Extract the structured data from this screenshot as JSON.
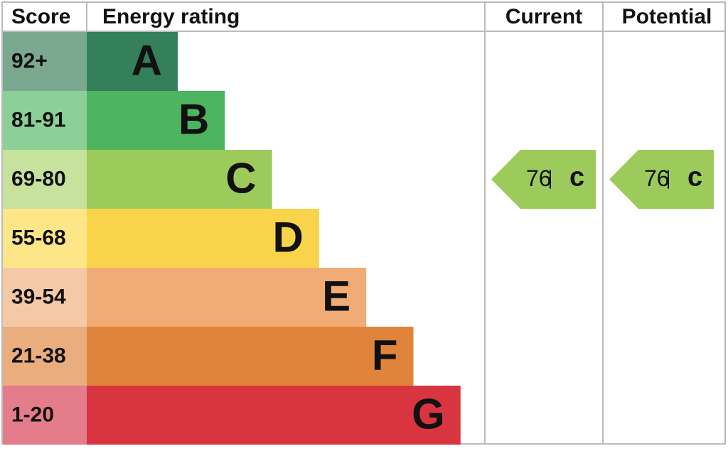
{
  "header": {
    "score": "Score",
    "rating": "Energy rating",
    "current": "Current",
    "potential": "Potential"
  },
  "bands": [
    {
      "score": "92+",
      "letter": "A",
      "color": "#33805a",
      "score_color": "#7aa98f"
    },
    {
      "score": "81-91",
      "letter": "B",
      "color": "#4db45f",
      "score_color": "#8ccf97"
    },
    {
      "score": "69-80",
      "letter": "C",
      "color": "#9dcb5b",
      "score_color": "#c6e29d"
    },
    {
      "score": "55-68",
      "letter": "D",
      "color": "#f9d44b",
      "score_color": "#fde687"
    },
    {
      "score": "39-54",
      "letter": "E",
      "color": "#f1ac75",
      "score_color": "#f6c9a6"
    },
    {
      "score": "21-38",
      "letter": "F",
      "color": "#e1843b",
      "score_color": "#e9ad7e"
    },
    {
      "score": "1-20",
      "letter": "G",
      "color": "#d93541",
      "score_color": "#e47c8b"
    }
  ],
  "current": {
    "value": 76,
    "letter": "c"
  },
  "potential": {
    "value": 76,
    "letter": "c"
  }
}
